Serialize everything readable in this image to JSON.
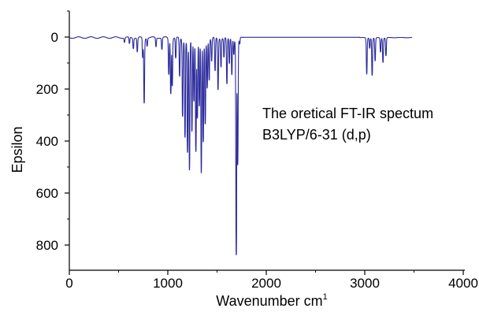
{
  "chart_data": {
    "type": "line",
    "annotation": [
      "The oretical FT-IR spectum",
      "B3LYP/6-31 (d,p)"
    ],
    "xlabel": "Wavenumber cm",
    "xlabel_sup": "1",
    "ylabel": "Epsilon",
    "xlim": [
      0,
      4000
    ],
    "ylim": [
      -90,
      860
    ],
    "y_inverted": true,
    "x_ticks": [
      "0",
      "1000",
      "2000",
      "3000",
      "4000"
    ],
    "y_ticks": [
      "0",
      "200",
      "400",
      "600",
      "800"
    ],
    "grid": false,
    "series_color": "#2b2a9c",
    "peaks": [
      {
        "x": 560,
        "y": 18
      },
      {
        "x": 610,
        "y": 25
      },
      {
        "x": 650,
        "y": 40
      },
      {
        "x": 690,
        "y": 55
      },
      {
        "x": 745,
        "y": 75
      },
      {
        "x": 760,
        "y": 250
      },
      {
        "x": 790,
        "y": 30
      },
      {
        "x": 880,
        "y": 35
      },
      {
        "x": 940,
        "y": 45
      },
      {
        "x": 1010,
        "y": 140
      },
      {
        "x": 1030,
        "y": 210
      },
      {
        "x": 1045,
        "y": 180
      },
      {
        "x": 1080,
        "y": 80
      },
      {
        "x": 1120,
        "y": 150
      },
      {
        "x": 1150,
        "y": 300
      },
      {
        "x": 1175,
        "y": 380
      },
      {
        "x": 1200,
        "y": 440
      },
      {
        "x": 1220,
        "y": 510
      },
      {
        "x": 1245,
        "y": 360
      },
      {
        "x": 1265,
        "y": 240
      },
      {
        "x": 1285,
        "y": 430
      },
      {
        "x": 1300,
        "y": 300
      },
      {
        "x": 1320,
        "y": 260
      },
      {
        "x": 1340,
        "y": 520
      },
      {
        "x": 1360,
        "y": 400
      },
      {
        "x": 1380,
        "y": 330
      },
      {
        "x": 1400,
        "y": 190
      },
      {
        "x": 1420,
        "y": 160
      },
      {
        "x": 1445,
        "y": 90
      },
      {
        "x": 1480,
        "y": 130
      },
      {
        "x": 1510,
        "y": 200
      },
      {
        "x": 1540,
        "y": 110
      },
      {
        "x": 1570,
        "y": 75
      },
      {
        "x": 1600,
        "y": 180
      },
      {
        "x": 1625,
        "y": 100
      },
      {
        "x": 1650,
        "y": 140
      },
      {
        "x": 1670,
        "y": 60
      },
      {
        "x": 1695,
        "y": 830
      },
      {
        "x": 1710,
        "y": 480
      },
      {
        "x": 1730,
        "y": 25
      },
      {
        "x": 3020,
        "y": 140
      },
      {
        "x": 3050,
        "y": 40
      },
      {
        "x": 3075,
        "y": 145
      },
      {
        "x": 3105,
        "y": 90
      },
      {
        "x": 3160,
        "y": 55
      },
      {
        "x": 3185,
        "y": 95
      },
      {
        "x": 3215,
        "y": 70
      }
    ]
  }
}
